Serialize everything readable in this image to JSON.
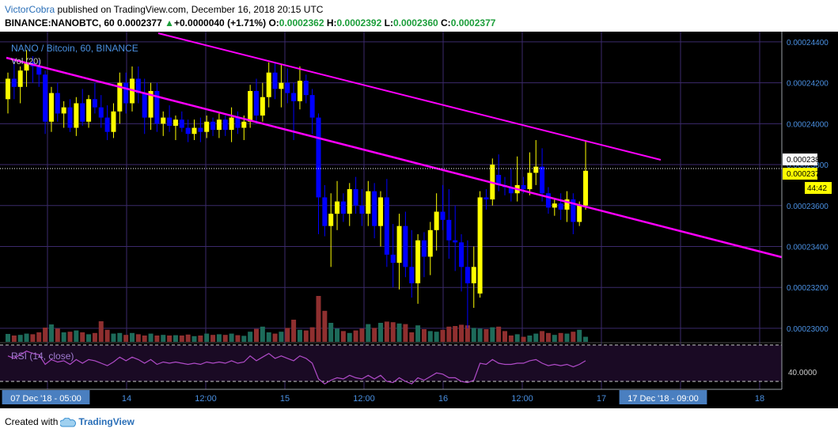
{
  "header": {
    "author": "VictorCobra",
    "published": "published on TradingView.com, December 16, 2018 20:15 UTC",
    "symbol": "BINANCE:NANOBTC, 60",
    "last": "0.0002377",
    "arrow": "▲",
    "change": "+0.0000040 (+1.71%)",
    "o_label": "O:",
    "o_value": "0.0002362",
    "h_label": "H:",
    "h_value": "0.0002392",
    "l_label": "L:",
    "l_value": "0.0002360",
    "c_label": "C:",
    "c_value": "0.0002377"
  },
  "chart_data": {
    "type": "candlestick",
    "title": "NANO / Bitcoin, 60, BINANCE",
    "volume_label": "Vol (20)",
    "rsi_label": "RSI (14, close)",
    "rsi_level": "40.0000",
    "price_ticks": [
      "0.00024400",
      "0.00024200",
      "0.00024000",
      "0.00023800",
      "0.00023600",
      "0.00023400",
      "0.00023200",
      "0.00023000"
    ],
    "price_marker_ask": "0.0002381",
    "price_marker_last": "0.0002377",
    "countdown": "44:42",
    "x_ticks": [
      "07 Dec '18 - 05:00",
      "14",
      "12:00",
      "15",
      "12:00",
      "16",
      "12:00",
      "17",
      "17 Dec '18 - 09:00",
      "18"
    ],
    "ylim": [
      0.0002293,
      0.0002445
    ],
    "colors": {
      "up": "#ffff00",
      "down": "#0000ff",
      "trendline": "#ff00ff",
      "vol_up": "#1d6b5a",
      "vol_down": "#8f2f2f",
      "rsi": "#b04bc8",
      "bg": "#000000"
    },
    "candles": [
      [
        0.0002412,
        0.0002425,
        0.0002405,
        0.0002422
      ],
      [
        0.0002422,
        0.0002432,
        0.0002412,
        0.0002418
      ],
      [
        0.0002418,
        0.0002428,
        0.000241,
        0.0002426
      ],
      [
        0.0002426,
        0.0002436,
        0.0002418,
        0.000243
      ],
      [
        0.000243,
        0.0002433,
        0.000242,
        0.0002428
      ],
      [
        0.0002428,
        0.0002431,
        0.0002418,
        0.0002424
      ],
      [
        0.0002424,
        0.0002426,
        0.0002395,
        0.0002401
      ],
      [
        0.0002401,
        0.0002418,
        0.0002396,
        0.0002415
      ],
      [
        0.0002415,
        0.000242,
        0.0002401,
        0.0002405
      ],
      [
        0.0002405,
        0.0002411,
        0.0002398,
        0.0002408
      ],
      [
        0.0002408,
        0.0002412,
        0.0002396,
        0.0002398
      ],
      [
        0.0002398,
        0.0002413,
        0.0002394,
        0.000241
      ],
      [
        0.000241,
        0.0002417,
        0.0002399,
        0.0002401
      ],
      [
        0.0002401,
        0.0002414,
        0.0002398,
        0.0002412
      ],
      [
        0.0002412,
        0.000242,
        0.0002405,
        0.0002408
      ],
      [
        0.0002408,
        0.0002414,
        0.0002398,
        0.0002403
      ],
      [
        0.0002403,
        0.0002409,
        0.0002392,
        0.0002396
      ],
      [
        0.0002396,
        0.000241,
        0.0002393,
        0.0002406
      ],
      [
        0.0002406,
        0.0002425,
        0.00024,
        0.000242
      ],
      [
        0.000242,
        0.0002425,
        0.0002405,
        0.000241
      ],
      [
        0.000241,
        0.0002428,
        0.0002406,
        0.0002422
      ],
      [
        0.0002422,
        0.0002428,
        0.000241,
        0.0002415
      ],
      [
        0.0002415,
        0.0002422,
        0.0002395,
        0.0002403
      ],
      [
        0.0002403,
        0.000242,
        0.0002397,
        0.0002416
      ],
      [
        0.0002416,
        0.000242,
        0.0002396,
        0.00024
      ],
      [
        0.00024,
        0.0002406,
        0.0002394,
        0.0002403
      ],
      [
        0.0002403,
        0.0002409,
        0.0002396,
        0.0002399
      ],
      [
        0.0002399,
        0.0002404,
        0.0002392,
        0.0002402
      ],
      [
        0.0002402,
        0.0002406,
        0.0002396,
        0.0002398
      ],
      [
        0.0002398,
        0.0002402,
        0.0002391,
        0.0002395
      ],
      [
        0.0002395,
        0.0002402,
        0.0002392,
        0.0002398
      ],
      [
        0.0002398,
        0.0002403,
        0.0002391,
        0.0002396
      ],
      [
        0.0002396,
        0.0002404,
        0.0002393,
        0.0002401
      ],
      [
        0.0002401,
        0.0002403,
        0.0002394,
        0.0002397
      ],
      [
        0.0002397,
        0.0002405,
        0.0002393,
        0.0002402
      ],
      [
        0.0002402,
        0.0002404,
        0.0002394,
        0.0002397
      ],
      [
        0.0002397,
        0.0002408,
        0.0002391,
        0.0002403
      ],
      [
        0.0002403,
        0.0002406,
        0.0002395,
        0.0002398
      ],
      [
        0.0002398,
        0.0002404,
        0.0002392,
        0.0002401
      ],
      [
        0.0002401,
        0.0002419,
        0.0002398,
        0.0002416
      ],
      [
        0.0002416,
        0.0002422,
        0.00024,
        0.0002404
      ],
      [
        0.0002404,
        0.000242,
        0.0002401,
        0.0002413
      ],
      [
        0.0002413,
        0.000243,
        0.0002408,
        0.0002425
      ],
      [
        0.0002425,
        0.000243,
        0.0002412,
        0.0002417
      ],
      [
        0.0002417,
        0.0002429,
        0.0002408,
        0.000242
      ],
      [
        0.000242,
        0.0002427,
        0.000241,
        0.0002415
      ],
      [
        0.0002415,
        0.000242,
        0.0002392,
        0.0002411
      ],
      [
        0.0002411,
        0.0002428,
        0.0002407,
        0.0002421
      ],
      [
        0.0002421,
        0.0002424,
        0.000241,
        0.0002414
      ],
      [
        0.0002414,
        0.0002417,
        0.0002395,
        0.0002403
      ],
      [
        0.0002403,
        0.0002405,
        0.0002346,
        0.0002364
      ],
      [
        0.0002364,
        0.000237,
        0.0002345,
        0.000235
      ],
      [
        0.000235,
        0.0002366,
        0.000233,
        0.0002356
      ],
      [
        0.0002356,
        0.0002372,
        0.0002348,
        0.0002362
      ],
      [
        0.0002362,
        0.0002366,
        0.0002352,
        0.0002356
      ],
      [
        0.0002356,
        0.0002371,
        0.000235,
        0.0002368
      ],
      [
        0.0002368,
        0.0002374,
        0.0002356,
        0.000236
      ],
      [
        0.000236,
        0.0002368,
        0.000235,
        0.0002356
      ],
      [
        0.0002356,
        0.0002372,
        0.000235,
        0.0002367
      ],
      [
        0.0002367,
        0.0002371,
        0.0002344,
        0.000235
      ],
      [
        0.000235,
        0.0002367,
        0.000234,
        0.0002364
      ],
      [
        0.0002364,
        0.0002373,
        0.000233,
        0.0002336
      ],
      [
        0.0002336,
        0.0002351,
        0.000232,
        0.0002332
      ],
      [
        0.0002332,
        0.0002356,
        0.0002319,
        0.000235
      ],
      [
        0.000235,
        0.0002357,
        0.0002325,
        0.000233
      ],
      [
        0.000233,
        0.0002348,
        0.0002315,
        0.0002322
      ],
      [
        0.0002322,
        0.0002346,
        0.0002312,
        0.0002343
      ],
      [
        0.0002343,
        0.0002347,
        0.0002325,
        0.0002335
      ],
      [
        0.0002335,
        0.0002352,
        0.0002326,
        0.0002348
      ],
      [
        0.0002348,
        0.0002366,
        0.0002338,
        0.0002357
      ],
      [
        0.0002357,
        0.000237,
        0.0002348,
        0.0002353
      ],
      [
        0.0002353,
        0.0002368,
        0.0002334,
        0.0002343
      ],
      [
        0.0002343,
        0.000236,
        0.0002328,
        0.0002342
      ],
      [
        0.0002342,
        0.0002346,
        0.0002318,
        0.000233
      ],
      [
        0.000233,
        0.0002343,
        0.00023,
        0.0002322
      ],
      [
        0.0002322,
        0.000234,
        0.000231,
        0.000233
      ],
      [
        0.0002317,
        0.0002367,
        0.0002315,
        0.0002364
      ],
      [
        0.0002364,
        0.0002368,
        0.0002358,
        0.0002363
      ],
      [
        0.0002363,
        0.0002383,
        0.000236,
        0.000238
      ],
      [
        0.0002375,
        0.0002385,
        0.0002367,
        0.000237
      ],
      [
        0.000237,
        0.0002374,
        0.0002365,
        0.0002369
      ],
      [
        0.0002369,
        0.0002378,
        0.0002362,
        0.0002366
      ],
      [
        0.0002366,
        0.0002384,
        0.0002362,
        0.000237
      ],
      [
        0.000237,
        0.0002374,
        0.0002366,
        0.0002368
      ],
      [
        0.0002368,
        0.0002386,
        0.0002365,
        0.0002376
      ],
      [
        0.0002376,
        0.0002392,
        0.000237,
        0.0002379
      ],
      [
        0.0002379,
        0.0002388,
        0.0002362,
        0.0002366
      ],
      [
        0.0002366,
        0.0002369,
        0.0002356,
        0.0002359
      ],
      [
        0.0002359,
        0.0002363,
        0.0002355,
        0.0002361
      ],
      [
        0.0002361,
        0.0002366,
        0.0002353,
        0.0002358
      ],
      [
        0.0002358,
        0.0002367,
        0.0002352,
        0.0002363
      ],
      [
        0.0002363,
        0.0002366,
        0.0002346,
        0.0002352
      ],
      [
        0.0002352,
        0.0002362,
        0.000235,
        0.000236
      ],
      [
        0.000236,
        0.0002392,
        0.0002358,
        0.0002377
      ]
    ],
    "volumes": [
      2.5,
      2.0,
      2.2,
      2.6,
      2.4,
      3.0,
      4.5,
      5.5,
      4.2,
      3.0,
      3.2,
      3.6,
      3.0,
      2.4,
      2.8,
      6.5,
      3.8,
      2.6,
      2.8,
      2.2,
      2.8,
      2.4,
      2.0,
      2.6,
      2.0,
      2.2,
      2.0,
      2.1,
      2.0,
      2.3,
      1.8,
      2.0,
      2.6,
      2.2,
      2.4,
      2.2,
      2.6,
      2.1,
      1.9,
      3.2,
      4.1,
      4.8,
      3.0,
      2.6,
      3.2,
      4.4,
      7.0,
      3.8,
      3.6,
      4.6,
      14.5,
      9.8,
      6.0,
      4.2,
      3.4,
      2.8,
      3.6,
      4.2,
      5.6,
      4.4,
      6.0,
      6.4,
      6.2,
      5.8,
      5.6,
      3.0,
      5.2,
      4.0,
      3.4,
      3.2,
      3.8,
      4.8,
      5.0,
      5.4,
      5.2,
      4.4,
      4.2,
      4.0,
      4.6,
      4.8,
      3.4,
      2.0,
      2.4,
      1.6,
      2.0,
      2.6,
      3.4,
      2.8,
      2.2,
      2.8,
      2.6,
      3.2,
      3.8,
      1.6
    ],
    "rsi": [
      56,
      54,
      57,
      60,
      58,
      57,
      49,
      53,
      51,
      52,
      49,
      53,
      50,
      53,
      52,
      50,
      48,
      51,
      55,
      52,
      55,
      53,
      50,
      53,
      49,
      51,
      50,
      51,
      50,
      49,
      50,
      49,
      51,
      50,
      51,
      50,
      52,
      50,
      51,
      56,
      52,
      55,
      58,
      54,
      56,
      54,
      52,
      56,
      54,
      50,
      37,
      33,
      36,
      38,
      37,
      40,
      38,
      37,
      40,
      37,
      40,
      35,
      34,
      38,
      35,
      33,
      38,
      36,
      39,
      42,
      41,
      38,
      38,
      35,
      34,
      36,
      50,
      49,
      53,
      50,
      49,
      49,
      50,
      50,
      52,
      53,
      50,
      48,
      49,
      48,
      49,
      47,
      49,
      52
    ]
  }
}
